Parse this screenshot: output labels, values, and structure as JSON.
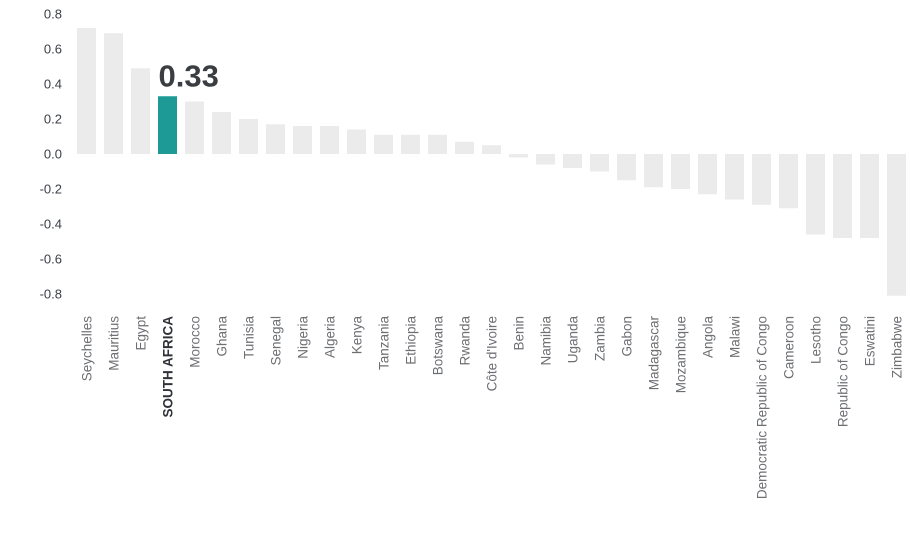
{
  "chart_data": {
    "type": "bar",
    "title": "",
    "xlabel": "",
    "ylabel": "",
    "ylim": [
      -0.8,
      0.8
    ],
    "yticks": [
      "0.8",
      "0.6",
      "0.4",
      "0.2",
      "0.0",
      "-0.2",
      "-0.4",
      "-0.6",
      "-0.8"
    ],
    "ytick_values": [
      0.8,
      0.6,
      0.4,
      0.2,
      0.0,
      -0.2,
      -0.4,
      -0.6,
      -0.8
    ],
    "grid": false,
    "categories": [
      "Seychelles",
      "Mauritius",
      "Egypt",
      "SOUTH AFRICA",
      "Morocco",
      "Ghana",
      "Tunisia",
      "Senegal",
      "Nigeria",
      "Algeria",
      "Kenya",
      "Tanzania",
      "Ethiopia",
      "Botswana",
      "Rwanda",
      "Côte d'Ivoire",
      "Benin",
      "Namibia",
      "Uganda",
      "Zambia",
      "Gabon",
      "Madagascar",
      "Mozambique",
      "Angola",
      "Malawi",
      "Democratic Republic of Congo",
      "Cameroon",
      "Lesotho",
      "Republic of Congo",
      "Eswatini",
      "Zimbabwe"
    ],
    "values": [
      0.72,
      0.69,
      0.49,
      0.33,
      0.3,
      0.24,
      0.2,
      0.17,
      0.16,
      0.16,
      0.14,
      0.11,
      0.11,
      0.11,
      0.07,
      0.05,
      -0.02,
      -0.06,
      -0.08,
      -0.1,
      -0.15,
      -0.19,
      -0.2,
      -0.23,
      -0.26,
      -0.29,
      -0.31,
      -0.46,
      -0.48,
      -0.48,
      -0.81
    ],
    "highlight_index": 3,
    "highlight_label": "0.33",
    "colors": {
      "bar": "#ebebeb",
      "highlight": "#1d9a96"
    }
  }
}
